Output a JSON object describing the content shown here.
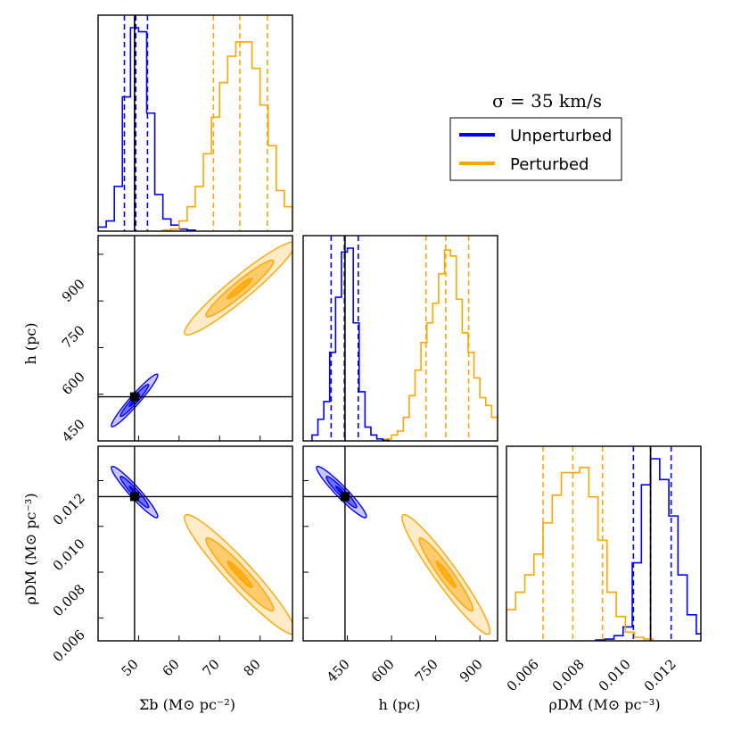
{
  "figure": {
    "title": "σ = 35 km/s",
    "legend": [
      {
        "label": "Unperturbed",
        "color": "#0000ff"
      },
      {
        "label": "Perturbed",
        "color": "#ffa500"
      }
    ],
    "colors": {
      "unperturbed": "#0000ff",
      "perturbed": "#ffa500",
      "truth": "#000000"
    }
  },
  "chart_data": [
    {
      "type": "histogram",
      "panel": "sigma_b",
      "xlim": [
        40,
        88
      ],
      "truth": 49,
      "series": [
        {
          "name": "Unperturbed",
          "quantiles": [
            46.5,
            49.3,
            52.2
          ],
          "edges": [
            40,
            42,
            44,
            46,
            48,
            50,
            52,
            54,
            56,
            58,
            60,
            62,
            64
          ],
          "counts": [
            0.02,
            0.05,
            0.22,
            0.66,
            1.0,
            0.98,
            0.58,
            0.18,
            0.06,
            0.03,
            0.01,
            0.005
          ]
        },
        {
          "name": "Perturbed",
          "quantiles": [
            68.5,
            75.0,
            81.8
          ],
          "edges": [
            56,
            58,
            60,
            62,
            64,
            66,
            68,
            70,
            72,
            74,
            76,
            78,
            80,
            82,
            84,
            86,
            88
          ],
          "counts": [
            0.005,
            0.01,
            0.05,
            0.12,
            0.22,
            0.38,
            0.56,
            0.73,
            0.86,
            0.93,
            0.93,
            0.8,
            0.62,
            0.42,
            0.2,
            0.12
          ]
        }
      ]
    },
    {
      "type": "contour",
      "panel": "h_vs_sigma_b",
      "xlim": [
        40,
        88
      ],
      "ylim": [
        300,
        960
      ],
      "xticks": [
        50,
        60,
        70,
        80
      ],
      "yticks": [
        450,
        600,
        750,
        900
      ],
      "truth": [
        49,
        442
      ],
      "series": [
        {
          "name": "Unperturbed",
          "center": [
            49,
            430
          ],
          "sd": [
            2.3,
            34
          ],
          "rho": 0.96
        },
        {
          "name": "Perturbed",
          "center": [
            75,
            790
          ],
          "sd": [
            5.5,
            60
          ],
          "rho": 0.95
        }
      ]
    },
    {
      "type": "histogram",
      "panel": "h",
      "xlim": [
        300,
        960
      ],
      "truth": 442,
      "series": [
        {
          "name": "Unperturbed",
          "quantiles": [
            395,
            440,
            487
          ],
          "edges": [
            330,
            350,
            370,
            390,
            410,
            430,
            450,
            470,
            490,
            510,
            530,
            550,
            570,
            590
          ],
          "counts": [
            0.03,
            0.11,
            0.2,
            0.45,
            0.73,
            0.96,
            0.98,
            0.6,
            0.25,
            0.07,
            0.03,
            0.01,
            0.005
          ]
        },
        {
          "name": "Perturbed",
          "quantiles": [
            717,
            784,
            862
          ],
          "edges": [
            580,
            600,
            620,
            640,
            660,
            680,
            700,
            720,
            740,
            760,
            780,
            800,
            820,
            840,
            860,
            880,
            900,
            920,
            940,
            960
          ],
          "counts": [
            0.01,
            0.03,
            0.05,
            0.12,
            0.23,
            0.36,
            0.5,
            0.6,
            0.7,
            0.85,
            0.97,
            0.94,
            0.72,
            0.55,
            0.45,
            0.32,
            0.22,
            0.18,
            0.12
          ]
        }
      ]
    },
    {
      "type": "contour",
      "panel": "rho_vs_sigma_b",
      "xlim": [
        40,
        88
      ],
      "ylim": [
        0.005,
        0.0135
      ],
      "xticks": [
        50,
        60,
        70,
        80
      ],
      "yticks": [
        0.006,
        0.008,
        0.01,
        0.012
      ],
      "truth": [
        49,
        0.0113
      ],
      "series": [
        {
          "name": "Unperturbed",
          "center": [
            49,
            0.0115
          ],
          "sd": [
            2.3,
            0.00045
          ],
          "rho": -0.95
        },
        {
          "name": "Perturbed",
          "center": [
            75,
            0.0079
          ],
          "sd": [
            5.5,
            0.00105
          ],
          "rho": -0.95
        }
      ]
    },
    {
      "type": "contour",
      "panel": "rho_vs_h",
      "xlim": [
        300,
        960
      ],
      "ylim": [
        0.005,
        0.0135
      ],
      "xticks": [
        450,
        600,
        750,
        900
      ],
      "yticks": [
        0.006,
        0.008,
        0.01,
        0.012
      ],
      "truth": [
        442,
        0.0113
      ],
      "series": [
        {
          "name": "Unperturbed",
          "center": [
            430,
            0.0115
          ],
          "sd": [
            34,
            0.00045
          ],
          "rho": -0.95
        },
        {
          "name": "Perturbed",
          "center": [
            785,
            0.0079
          ],
          "sd": [
            60,
            0.00105
          ],
          "rho": -0.95
        }
      ]
    },
    {
      "type": "histogram",
      "panel": "rho_dm",
      "xlim": [
        0.005,
        0.0135
      ],
      "truth": 0.0113,
      "series": [
        {
          "name": "Unperturbed",
          "quantiles": [
            0.01055,
            0.0113,
            0.0122
          ],
          "edges": [
            0.0089,
            0.0093,
            0.0097,
            0.0101,
            0.0105,
            0.0109,
            0.0113,
            0.0117,
            0.0121,
            0.0125,
            0.0129,
            0.0133,
            0.0137
          ],
          "counts": [
            0.005,
            0.01,
            0.03,
            0.08,
            0.45,
            0.9,
            1.05,
            0.93,
            0.72,
            0.38,
            0.15,
            0.04
          ]
        },
        {
          "name": "Perturbed",
          "quantiles": [
            0.0066,
            0.0079,
            0.0092
          ],
          "edges": [
            0.005,
            0.0054,
            0.0058,
            0.0062,
            0.0066,
            0.007,
            0.0074,
            0.0078,
            0.0082,
            0.0086,
            0.009,
            0.0094,
            0.0098,
            0.0102,
            0.0106,
            0.011,
            0.0114
          ],
          "counts": [
            0.18,
            0.28,
            0.38,
            0.5,
            0.68,
            0.84,
            0.97,
            0.97,
            1.0,
            0.83,
            0.58,
            0.28,
            0.14,
            0.05,
            0.02,
            0.01
          ]
        }
      ]
    }
  ],
  "labels": {
    "x_sigma_b": "Σb (M⊙ pc⁻²)",
    "x_h": "h (pc)",
    "x_rho": "ρDM (M⊙ pc⁻³)",
    "y_h": "h (pc)",
    "y_rho": "ρDM (M⊙ pc⁻³)"
  },
  "ticks": {
    "sigma_b": [
      "50",
      "60",
      "70",
      "80"
    ],
    "h": [
      "450",
      "600",
      "750",
      "900"
    ],
    "rho": [
      "0.006",
      "0.008",
      "0.010",
      "0.012"
    ]
  }
}
